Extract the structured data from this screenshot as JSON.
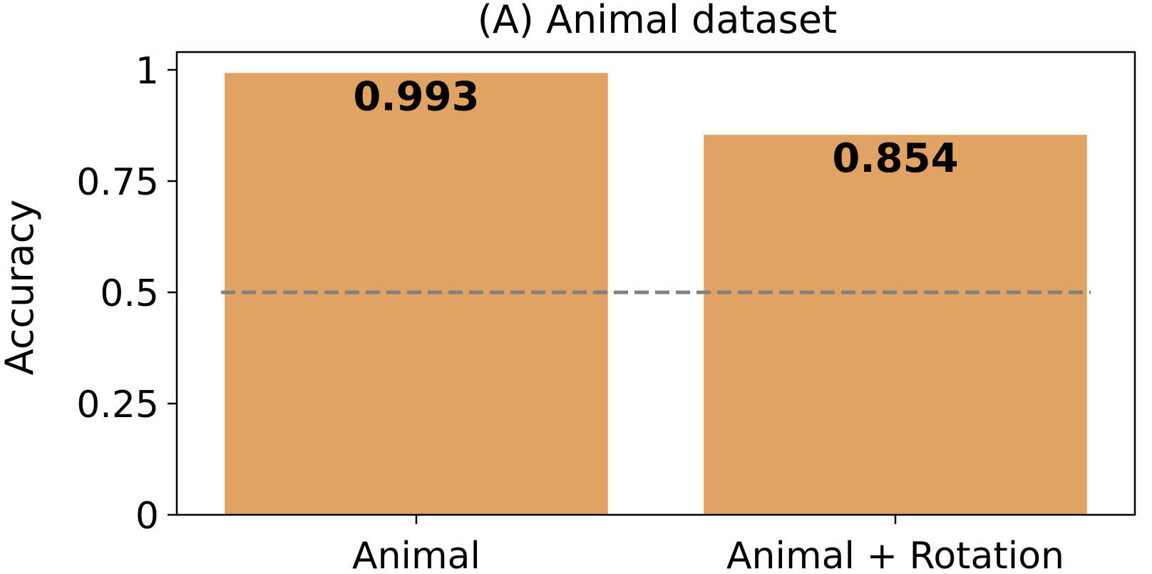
{
  "chart_data": {
    "type": "bar",
    "title": "(A) Animal dataset",
    "ylabel": "Accuracy",
    "xlabel": "",
    "categories": [
      "Animal",
      "Animal + Rotation"
    ],
    "values": [
      0.993,
      0.854
    ],
    "value_labels": [
      "0.993",
      "0.854"
    ],
    "ylim": [
      0,
      1.04
    ],
    "yticks": [
      0,
      0.25,
      0.5,
      0.75,
      1
    ],
    "ytick_labels": [
      "0",
      "0.25",
      "0.5",
      "0.75",
      "1"
    ],
    "reference_line": {
      "y": 0.5,
      "style": "dashed",
      "color": "#808080"
    },
    "bar_color": "#E0A363",
    "grid": false,
    "legend": "none"
  }
}
